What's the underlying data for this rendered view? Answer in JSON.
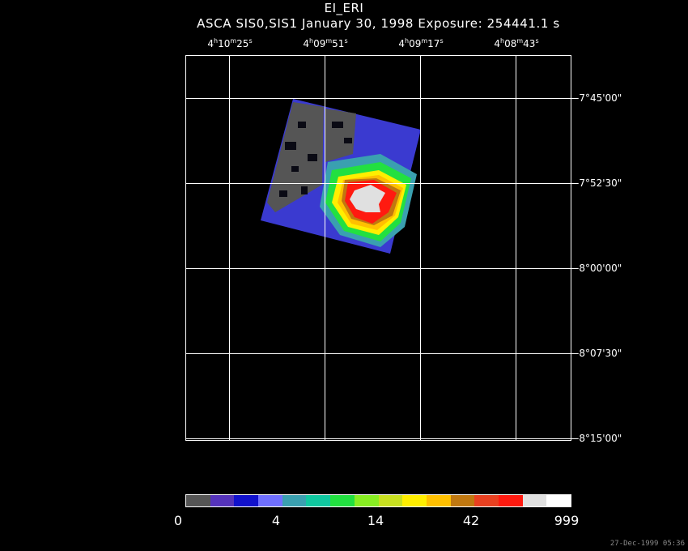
{
  "title": "EI_ERI",
  "subtitle": "ASCA SIS0,SIS1 January 30, 1998 Exposure: 254441.1 s",
  "ra_ticks": [
    {
      "h": "4",
      "m": "10",
      "s": "25"
    },
    {
      "h": "4",
      "m": "09",
      "s": "51"
    },
    {
      "h": "4",
      "m": "09",
      "s": "17"
    },
    {
      "h": "4",
      "m": "08",
      "s": "43"
    }
  ],
  "dec_ticks": [
    "-7°45'00\"",
    "-7°52'30\"",
    "-8°00'00\"",
    "-8°07'30\"",
    "-8°15'00\""
  ],
  "colorbar": {
    "colors": [
      "#555555",
      "#5533bb",
      "#1111cc",
      "#7070ff",
      "#3aa0b0",
      "#10c8a0",
      "#22e040",
      "#88ee22",
      "#c8e020",
      "#ffee00",
      "#ffc000",
      "#c07810",
      "#e84020",
      "#ff1a10",
      "#e0e0e0",
      "#ffffff"
    ],
    "labels": [
      "0",
      "4",
      "14",
      "42",
      "999"
    ]
  },
  "timestamp": "27-Dec-1999 05:36"
}
